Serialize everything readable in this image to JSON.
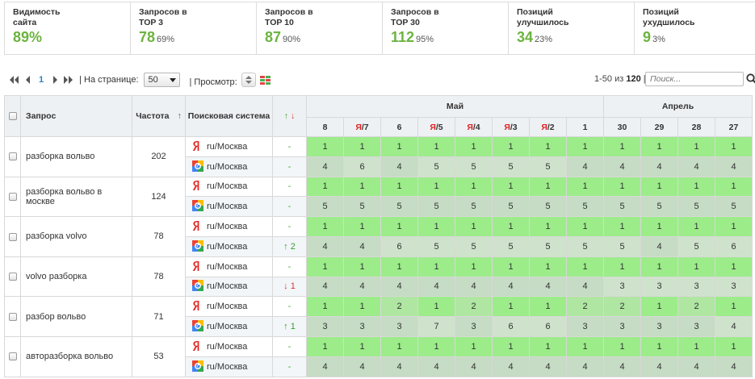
{
  "stats": [
    {
      "label": "Видимость\nсайта",
      "value": "89%",
      "pct": ""
    },
    {
      "label": "Запросов в\nTOP 3",
      "value": "78",
      "pct": "69%"
    },
    {
      "label": "Запросов в\nTOP 10",
      "value": "87",
      "pct": "90%"
    },
    {
      "label": "Запросов в\nTOP 30",
      "value": "112",
      "pct": "95%"
    },
    {
      "label": "Позиций\nулучшилось",
      "value": "34",
      "pct": "23%"
    },
    {
      "label": "Позиций\nухудшилось",
      "value": "9",
      "pct": "3%"
    }
  ],
  "pager": {
    "current_page": "1",
    "per_page_label": "| На странице:",
    "per_page_value": "50",
    "view_label": "| Просмотр:",
    "range_prefix": "1-50 из",
    "range_total": "120",
    "range_suffix": "|",
    "search_placeholder": "Поиск..."
  },
  "colors": {
    "accent_green": "#6cb33f",
    "cell_light_green": "#9cec8a",
    "cell_gray_green": "#c6dcc4",
    "cell_darker": "#bfd6bc",
    "header_bg": "#eef1f4",
    "link_blue": "#2a7fc1"
  },
  "table": {
    "headers": {
      "query": "Запрос",
      "freq": "Частота",
      "freq_sort": "↑",
      "engine": "Поисковая система",
      "change_up": "↑",
      "change_down": "↓"
    },
    "months": [
      {
        "name": "Май",
        "span": 8
      },
      {
        "name": "Апрель",
        "span": 4
      }
    ],
    "days": [
      {
        "prefix": "",
        "day": "8"
      },
      {
        "prefix": "Я",
        "day": "/7"
      },
      {
        "prefix": "",
        "day": "6"
      },
      {
        "prefix": "Я",
        "day": "/5"
      },
      {
        "prefix": "Я",
        "day": "/4"
      },
      {
        "prefix": "Я",
        "day": "/3"
      },
      {
        "prefix": "Я",
        "day": "/2"
      },
      {
        "prefix": "",
        "day": "1"
      },
      {
        "prefix": "",
        "day": "30"
      },
      {
        "prefix": "",
        "day": "29"
      },
      {
        "prefix": "",
        "day": "28"
      },
      {
        "prefix": "",
        "day": "27"
      }
    ],
    "rows": [
      {
        "query": "разборка вольво",
        "freq": "202",
        "yandex": {
          "region": "ru/Москва",
          "change": "-",
          "dir": "none",
          "pos": [
            "1",
            "1",
            "1",
            "1",
            "1",
            "1",
            "1",
            "1",
            "1",
            "1",
            "1",
            "1"
          ]
        },
        "google": {
          "region": "ru/Москва",
          "change": "-",
          "dir": "none",
          "pos": [
            "4",
            "6",
            "4",
            "5",
            "5",
            "5",
            "5",
            "4",
            "4",
            "4",
            "4",
            "4"
          ]
        }
      },
      {
        "query": "разборка вольво в москве",
        "freq": "124",
        "yandex": {
          "region": "ru/Москва",
          "change": "-",
          "dir": "none",
          "pos": [
            "1",
            "1",
            "1",
            "1",
            "1",
            "1",
            "1",
            "1",
            "1",
            "1",
            "1",
            "1"
          ]
        },
        "google": {
          "region": "ru/Москва",
          "change": "-",
          "dir": "none",
          "pos": [
            "5",
            "5",
            "5",
            "5",
            "5",
            "5",
            "5",
            "5",
            "5",
            "5",
            "5",
            "5"
          ]
        }
      },
      {
        "query": "разборка volvo",
        "freq": "78",
        "yandex": {
          "region": "ru/Москва",
          "change": "-",
          "dir": "none",
          "pos": [
            "1",
            "1",
            "1",
            "1",
            "1",
            "1",
            "1",
            "1",
            "1",
            "1",
            "1",
            "1"
          ]
        },
        "google": {
          "region": "ru/Москва",
          "change": "↑ 2",
          "dir": "up",
          "pos": [
            "4",
            "4",
            "6",
            "5",
            "5",
            "5",
            "5",
            "5",
            "5",
            "4",
            "5",
            "6"
          ]
        }
      },
      {
        "query": "volvo разборка",
        "freq": "78",
        "yandex": {
          "region": "ru/Москва",
          "change": "-",
          "dir": "none",
          "pos": [
            "1",
            "1",
            "1",
            "1",
            "1",
            "1",
            "1",
            "1",
            "1",
            "1",
            "1",
            "1"
          ]
        },
        "google": {
          "region": "ru/Москва",
          "change": "↓ 1",
          "dir": "down",
          "pos": [
            "4",
            "4",
            "4",
            "4",
            "4",
            "4",
            "4",
            "4",
            "3",
            "3",
            "3",
            "3"
          ]
        }
      },
      {
        "query": "разбор вольво",
        "freq": "71",
        "yandex": {
          "region": "ru/Москва",
          "change": "-",
          "dir": "none",
          "pos": [
            "1",
            "1",
            "2",
            "1",
            "2",
            "1",
            "1",
            "2",
            "2",
            "1",
            "2",
            "1"
          ]
        },
        "google": {
          "region": "ru/Москва",
          "change": "↑ 1",
          "dir": "up",
          "pos": [
            "3",
            "3",
            "3",
            "7",
            "3",
            "6",
            "6",
            "3",
            "3",
            "3",
            "3",
            "4"
          ]
        }
      },
      {
        "query": "авторазборка вольво",
        "freq": "53",
        "yandex": {
          "region": "ru/Москва",
          "change": "-",
          "dir": "none",
          "pos": [
            "1",
            "1",
            "1",
            "1",
            "1",
            "1",
            "1",
            "1",
            "1",
            "1",
            "1",
            "1"
          ]
        },
        "google": {
          "region": "ru/Москва",
          "change": "-",
          "dir": "none",
          "pos": [
            "4",
            "4",
            "4",
            "4",
            "4",
            "4",
            "4",
            "4",
            "4",
            "4",
            "4",
            "4"
          ]
        }
      }
    ]
  }
}
